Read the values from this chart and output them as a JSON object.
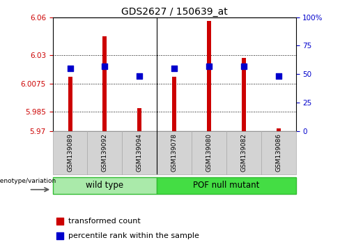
{
  "title": "GDS2627 / 150639_at",
  "samples": [
    "GSM139089",
    "GSM139092",
    "GSM139094",
    "GSM139078",
    "GSM139080",
    "GSM139082",
    "GSM139086"
  ],
  "group_labels": [
    "wild type",
    "POF null mutant"
  ],
  "transformed_count": [
    6.013,
    6.045,
    5.988,
    6.013,
    6.057,
    6.028,
    5.972
  ],
  "percentile_rank": [
    55,
    57,
    48,
    55,
    57,
    57,
    48
  ],
  "bar_bottom": 5.97,
  "ylim_left": [
    5.97,
    6.06
  ],
  "ylim_right": [
    0,
    100
  ],
  "yticks_left": [
    5.97,
    5.985,
    6.0075,
    6.03,
    6.06
  ],
  "yticks_left_labels": [
    "5.97",
    "5.985",
    "6.0075",
    "6.03",
    "6.06"
  ],
  "yticks_right": [
    0,
    25,
    50,
    75,
    100
  ],
  "yticks_right_labels": [
    "0",
    "25",
    "50",
    "75",
    "100%"
  ],
  "bar_color": "#cc0000",
  "dot_color": "#0000cc",
  "label_color_left": "#cc0000",
  "label_color_right": "#0000cc",
  "bar_width": 0.12,
  "dot_size": 28,
  "legend_items": [
    "transformed count",
    "percentile rank within the sample"
  ],
  "genotype_label": "genotype/variation",
  "wild_type_color": "#aaeaaa",
  "pof_null_color": "#44dd44",
  "wild_type_count": 3,
  "pof_null_count": 4,
  "sample_box_color": "#d3d3d3",
  "sep_line_color": "#888888"
}
